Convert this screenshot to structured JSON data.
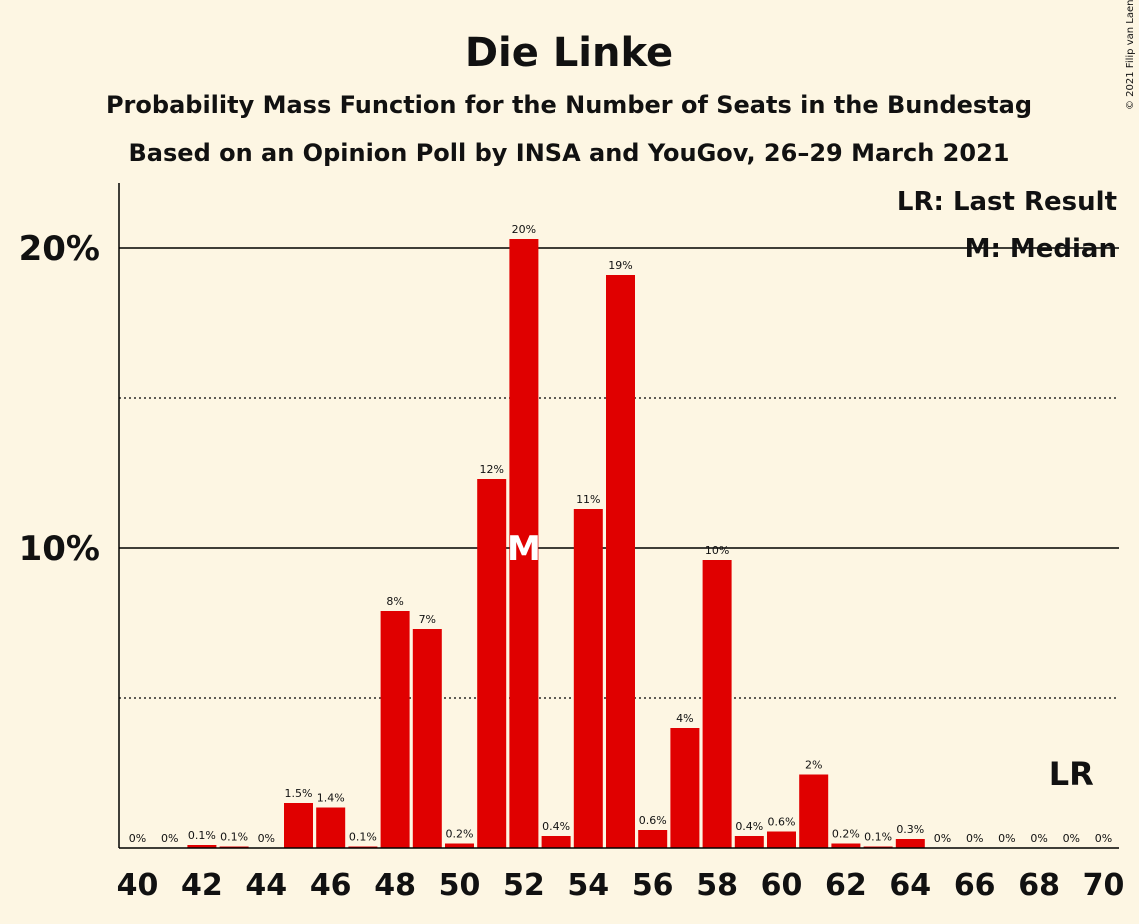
{
  "chart_data": {
    "type": "bar",
    "title": "Die Linke",
    "subtitle": "Probability Mass Function for the Number of Seats in the Bundestag",
    "subtitle2": "Based on an Opinion Poll by INSA and YouGov, 26–29 March 2021",
    "copyright": "© 2021 Filip van Laenen",
    "legend": {
      "lr": "LR: Last Result",
      "median": "M: Median"
    },
    "lr_marker": {
      "label": "LR",
      "seat": 69
    },
    "median_marker": {
      "label": "M",
      "seat": 52
    },
    "bar_color": "#e00000",
    "ylim": [
      0,
      22
    ],
    "yticks": [
      {
        "value": 10,
        "label": "10%"
      },
      {
        "value": 20,
        "label": "20%"
      }
    ],
    "dotted_lines": [
      5,
      15
    ],
    "xticks": [
      40,
      42,
      44,
      46,
      48,
      50,
      52,
      54,
      56,
      58,
      60,
      62,
      64,
      66,
      68,
      70
    ],
    "categories": [
      40,
      41,
      42,
      43,
      44,
      45,
      46,
      47,
      48,
      49,
      50,
      51,
      52,
      53,
      54,
      55,
      56,
      57,
      58,
      59,
      60,
      61,
      62,
      63,
      64,
      65,
      66,
      67,
      68,
      69,
      70
    ],
    "values": [
      0,
      0,
      0.1,
      0.05,
      0,
      1.5,
      1.35,
      0.05,
      7.9,
      7.3,
      0.15,
      12.3,
      20.3,
      0.4,
      11.3,
      19.1,
      0.6,
      4.0,
      9.6,
      0.4,
      0.55,
      2.45,
      0.15,
      0.05,
      0.3,
      0,
      0,
      0,
      0,
      0,
      0
    ],
    "labels": [
      "0%",
      "0%",
      "0.1%",
      "0.1%",
      "0%",
      "1.5%",
      "1.4%",
      "0.1%",
      "8%",
      "7%",
      "0.2%",
      "12%",
      "20%",
      "0.4%",
      "11%",
      "19%",
      "0.6%",
      "4%",
      "10%",
      "0.4%",
      "0.6%",
      "2%",
      "0.2%",
      "0.1%",
      "0.3%",
      "0%",
      "0%",
      "0%",
      "0%",
      "0%",
      "0%"
    ]
  }
}
